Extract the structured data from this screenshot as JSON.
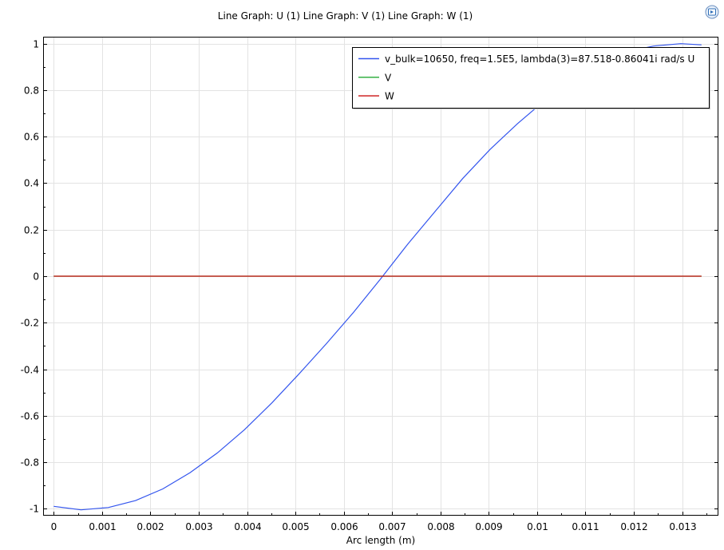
{
  "chart_data": {
    "type": "line",
    "title": "Line Graph: U (1)  Line Graph: V (1)  Line Graph: W (1)",
    "xlabel": "Arc length (m)",
    "ylabel": "",
    "xlim": [
      -0.00022,
      0.01375
    ],
    "ylim": [
      -1.03,
      1.03
    ],
    "x_ticks": [
      0,
      0.001,
      0.002,
      0.003,
      0.004,
      0.005,
      0.006,
      0.007,
      0.008,
      0.009,
      0.01,
      0.011,
      0.012,
      0.013
    ],
    "x_tick_labels": [
      "0",
      "0.001",
      "0.002",
      "0.003",
      "0.004",
      "0.005",
      "0.006",
      "0.007",
      "0.008",
      "0.009",
      "0.01",
      "0.011",
      "0.012",
      "0.013"
    ],
    "y_ticks": [
      -1,
      -0.8,
      -0.6,
      -0.4,
      -0.2,
      0,
      0.2,
      0.4,
      0.6,
      0.8,
      1
    ],
    "y_tick_labels": [
      "-1",
      "-0.8",
      "-0.6",
      "-0.4",
      "-0.2",
      "0",
      "0.2",
      "0.4",
      "0.6",
      "0.8",
      "1"
    ],
    "grid": true,
    "legend_position": "top-right",
    "series": [
      {
        "name": "v_bulk=10650, freq=1.5E5, lambda(3)=87.518-0.86041i rad/s U",
        "color": "#3355ee",
        "x": [
          0,
          0.000564,
          0.001128,
          0.001692,
          0.002256,
          0.00282,
          0.003384,
          0.003948,
          0.004512,
          0.005076,
          0.00564,
          0.006204,
          0.006768,
          0.007332,
          0.007896,
          0.00846,
          0.009024,
          0.009588,
          0.010152,
          0.010716,
          0.01128,
          0.011844,
          0.012408,
          0.012972,
          0.0134
        ],
        "y": [
          -0.99,
          -1.005,
          -0.995,
          -0.965,
          -0.915,
          -0.845,
          -0.76,
          -0.66,
          -0.545,
          -0.42,
          -0.29,
          -0.155,
          -0.01,
          0.14,
          0.28,
          0.42,
          0.545,
          0.655,
          0.755,
          0.845,
          0.915,
          0.965,
          0.99,
          1.0,
          0.995
        ]
      },
      {
        "name": "V",
        "color": "#22aa33",
        "x": [
          0,
          0.0134
        ],
        "y": [
          0,
          0
        ]
      },
      {
        "name": "W",
        "color": "#cc1111",
        "x": [
          0,
          0.0134
        ],
        "y": [
          0,
          0
        ]
      }
    ]
  },
  "corner_icon": "plot-settings-icon"
}
